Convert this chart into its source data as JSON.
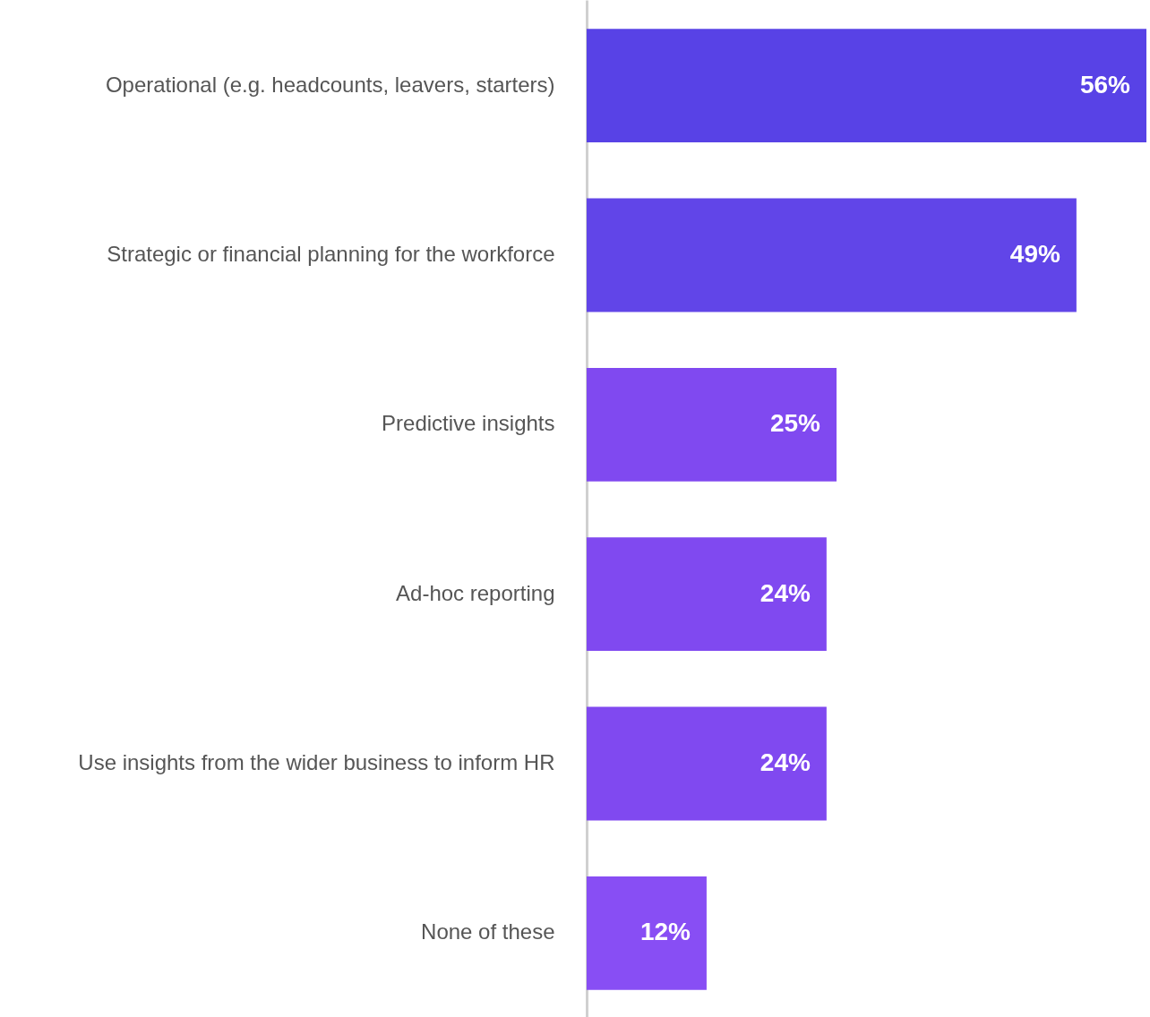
{
  "chart_data": {
    "type": "bar",
    "orientation": "horizontal",
    "categories": [
      "Operational (e.g. headcounts, leavers, starters)",
      "Strategic or financial planning for the workforce",
      "Predictive insights",
      "Ad-hoc reporting",
      "Use insights from the wider business to inform HR",
      "None of these"
    ],
    "values": [
      56,
      49,
      25,
      24,
      24,
      12
    ],
    "colors": [
      "#5842e6",
      "#6145e8",
      "#8049f0",
      "#8049f0",
      "#8049f0",
      "#884ef4"
    ],
    "value_labels": [
      "56%",
      "49%",
      "25%",
      "24%",
      "24%",
      "12%"
    ]
  }
}
